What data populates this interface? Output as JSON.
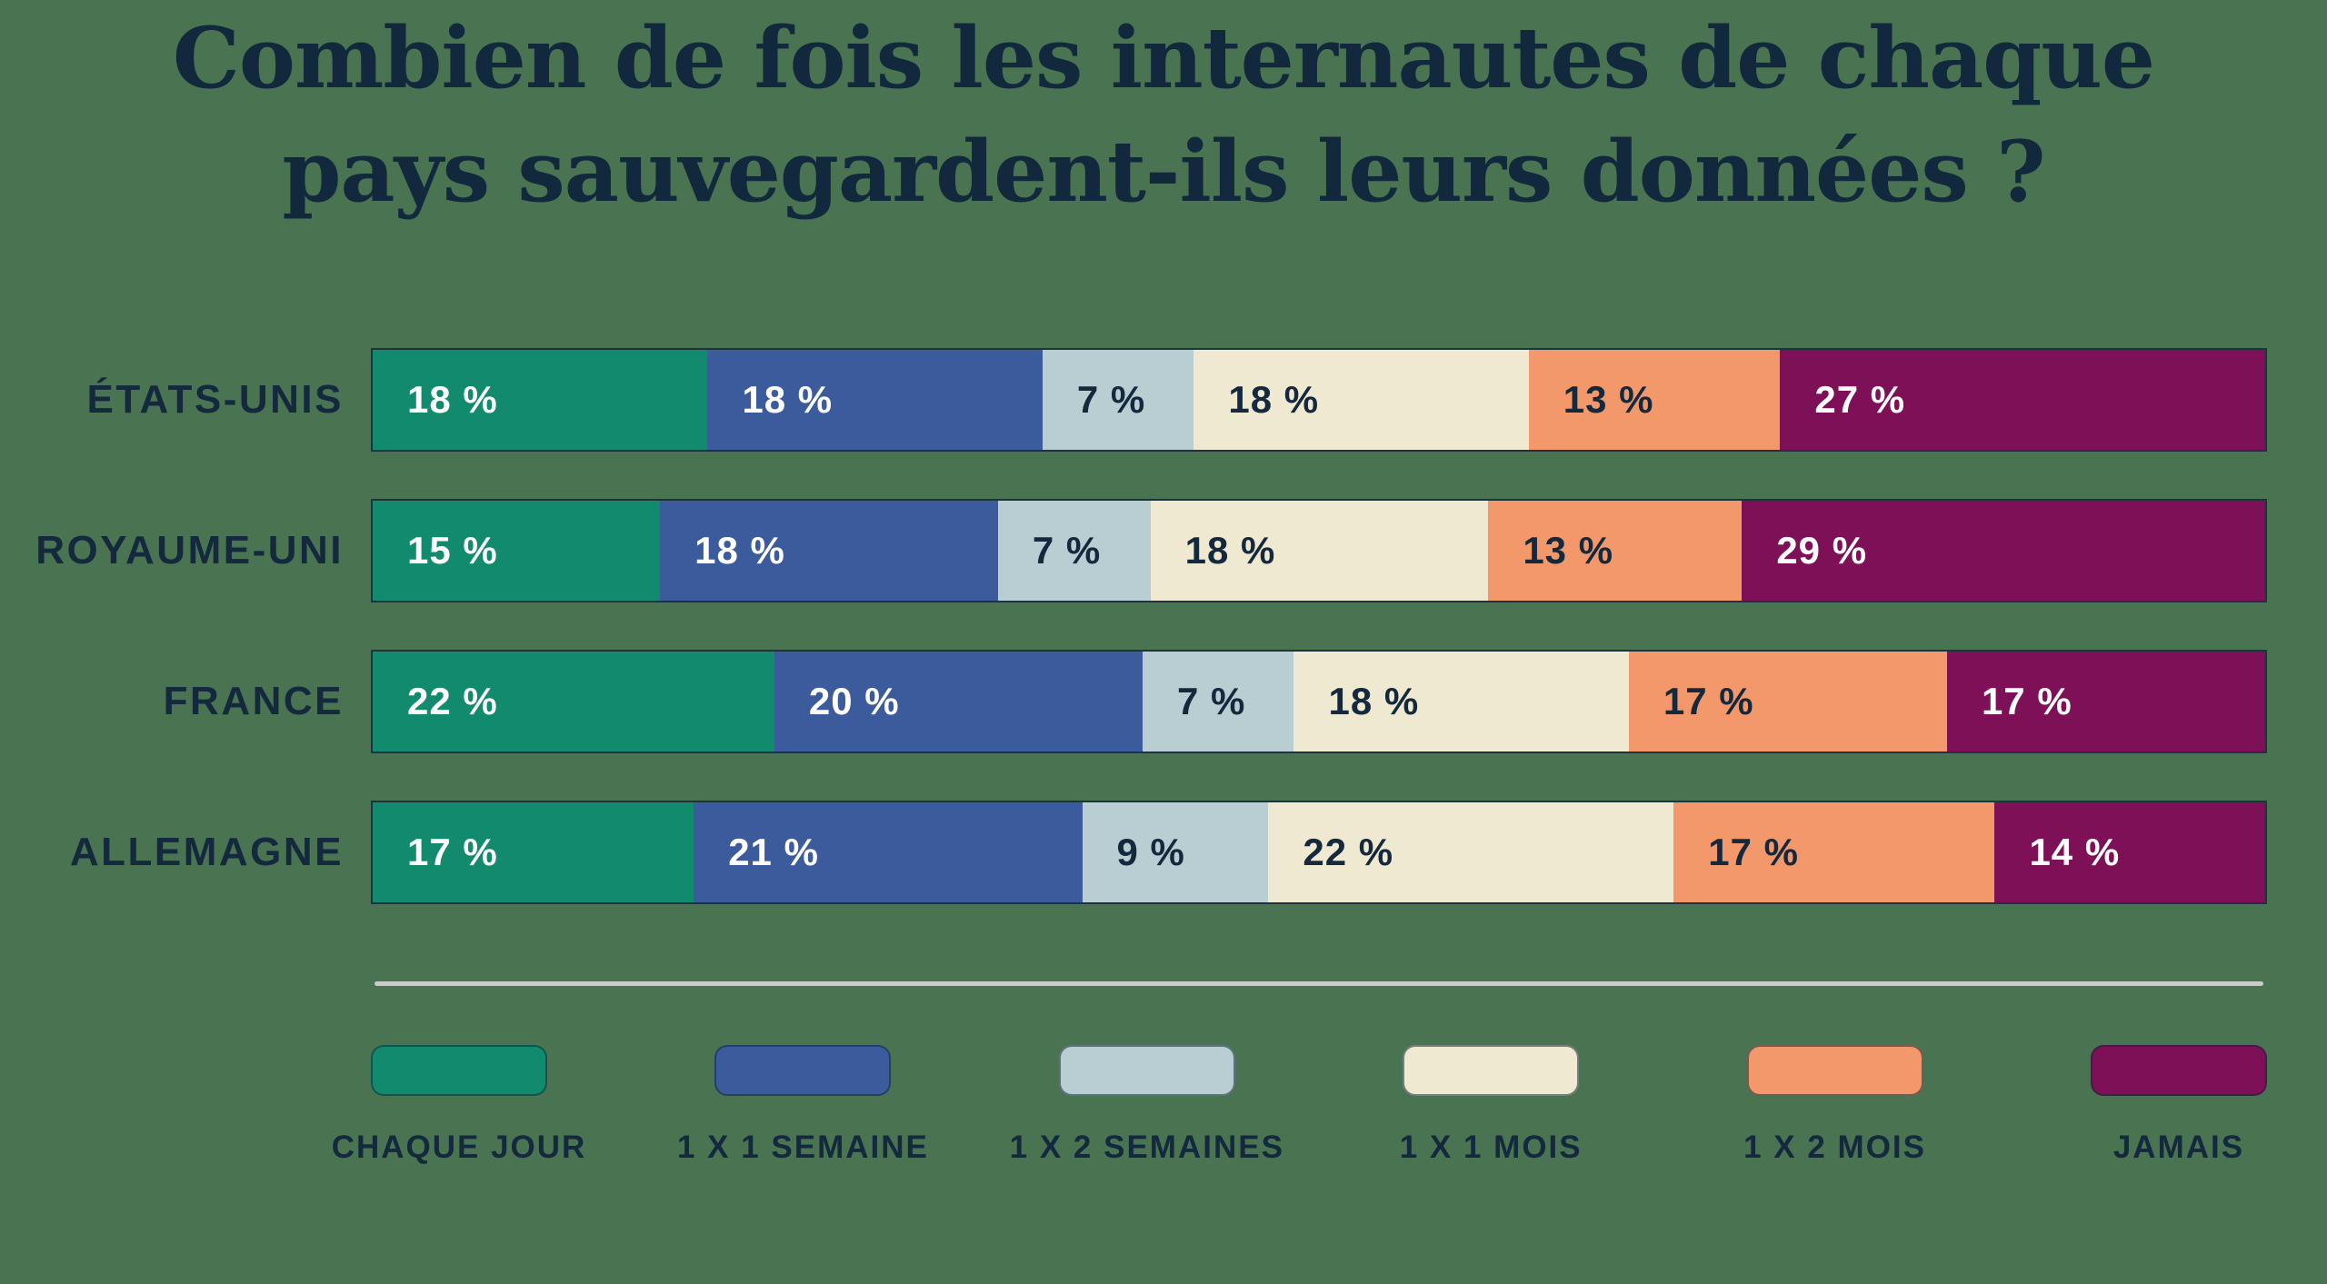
{
  "title": {
    "line1": "Combien de fois les internautes de chaque",
    "line2": "pays sauvegardent-ils leurs données ?"
  },
  "colors": {
    "background": "#497351",
    "title_text": "#12293D",
    "row_label_text": "#14293D",
    "divider": "#C9CDC9",
    "bar_outline": "#15283A"
  },
  "chart_data": {
    "type": "bar",
    "variant": "horizontal_stacked",
    "unit": "%",
    "value_label_format": "{v} %",
    "title": "Combien de fois les internautes de chaque pays sauvegardent-ils leurs données ?",
    "categories": [
      "ÉTATS-UNIS",
      "ROYAUME-UNI",
      "FRANCE",
      "ALLEMAGNE"
    ],
    "series": [
      {
        "name": "CHAQUE JOUR",
        "color": "#128A6E",
        "label_color": "#FFFFFF",
        "values": [
          18,
          15,
          22,
          17
        ]
      },
      {
        "name": "1 X 1 SEMAINE",
        "color": "#3C5B9D",
        "label_color": "#FFFFFF",
        "values": [
          18,
          18,
          20,
          21
        ]
      },
      {
        "name": "1 X 2 SEMAINES",
        "color": "#B9CED3",
        "label_color": "#14293D",
        "values": [
          7,
          7,
          7,
          9
        ]
      },
      {
        "name": "1 X 1 MOIS",
        "color": "#EFE9D1",
        "label_color": "#14293D",
        "values": [
          18,
          18,
          18,
          22
        ]
      },
      {
        "name": "1 X 2 MOIS",
        "color": "#F2986A",
        "label_color": "#14293D",
        "values": [
          13,
          13,
          17,
          17
        ]
      },
      {
        "name": "JAMAIS",
        "color": "#7D1056",
        "label_color": "#FFFFFF",
        "values": [
          27,
          29,
          17,
          14
        ]
      }
    ],
    "legend_position": "bottom",
    "grid": false,
    "axis_labels": "none"
  }
}
